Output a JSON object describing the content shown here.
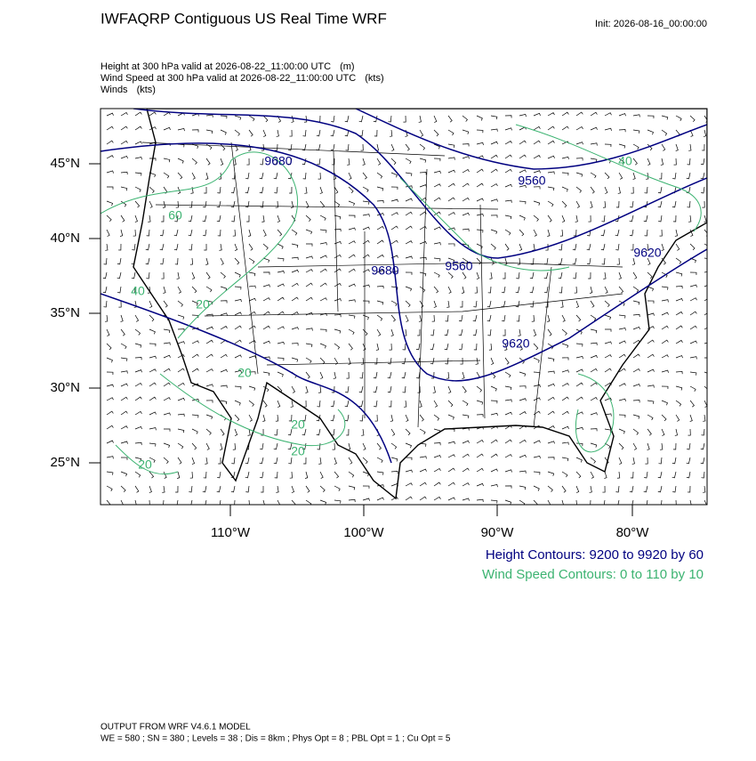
{
  "header": {
    "title": "IWFAQRP Contiguous US Real Time WRF",
    "init": "Init: 2026-08-16_00:00:00"
  },
  "fields": [
    {
      "text": "Height at 300 hPa valid at 2026-08-22_11:00:00 UTC",
      "units": "(m)"
    },
    {
      "text": "Wind Speed at 300 hPa valid at 2026-08-22_11:00:00 UTC",
      "units": "(kts)"
    },
    {
      "text": "Winds",
      "units": "(kts)"
    }
  ],
  "map": {
    "lat_labels": [
      "45°N",
      "40°N",
      "35°N",
      "30°N",
      "25°N"
    ],
    "lon_labels": [
      "110°W",
      "100°W",
      "90°W",
      "80°W"
    ],
    "height_contour_labels": [
      "9680",
      "9560",
      "9680",
      "9560",
      "9620",
      "9620"
    ],
    "wind_contour_labels": [
      "40",
      "60",
      "20",
      "20",
      "20",
      "20",
      "20",
      "40"
    ]
  },
  "legend": {
    "height": "Height Contours: 9200 to 9920 by 60",
    "wind": "Wind Speed Contours: 0 to 110 by 10"
  },
  "footer": [
    "OUTPUT FROM WRF V4.6.1 MODEL",
    "WE = 580 ; SN = 380 ; Levels = 38 ; Dis = 8km ; Phys Opt = 8 ; PBL Opt = 1 ; Cu Opt = 5"
  ]
}
